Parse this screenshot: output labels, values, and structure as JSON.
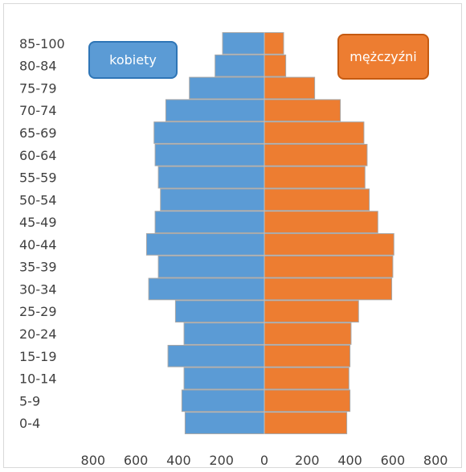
{
  "chart_data": {
    "type": "bar",
    "orientation": "horizontal-population-pyramid",
    "categories": [
      "0-4",
      "5-9",
      "10-14",
      "15-19",
      "20-24",
      "25-29",
      "30-34",
      "35-39",
      "40-44",
      "45-49",
      "50-54",
      "55-59",
      "60-64",
      "65-69",
      "70-74",
      "75-79",
      "80-84",
      "85-100"
    ],
    "series": [
      {
        "name": "kobiety",
        "color": "#5b9bd5",
        "values": [
          370,
          385,
          375,
          450,
          375,
          415,
          540,
          495,
          550,
          510,
          485,
          495,
          510,
          515,
          460,
          350,
          230,
          195
        ]
      },
      {
        "name": "mężczyźni",
        "color": "#ed7d31",
        "values": [
          385,
          400,
          395,
          400,
          405,
          440,
          595,
          600,
          605,
          530,
          490,
          470,
          480,
          465,
          355,
          235,
          100,
          90
        ]
      }
    ],
    "xlim": [
      -800,
      800
    ],
    "xticks": [
      "800",
      "600",
      "400",
      "200",
      "0",
      "200",
      "400",
      "600",
      "800"
    ],
    "grid": false
  },
  "legend": {
    "women_label": "kobiety",
    "men_label": "mężczyźni"
  },
  "colors": {
    "women_fill": "#5b9bd5",
    "women_border": "#2e75b6",
    "men_fill": "#ed7d31",
    "men_border": "#c55a11"
  }
}
